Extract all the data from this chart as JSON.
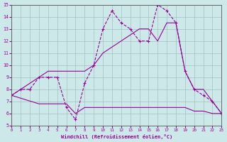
{
  "xlabel": "Windchill (Refroidissement éolien,°C)",
  "background_color": "#cce8e8",
  "line_color": "#990099",
  "xlim": [
    0,
    23
  ],
  "ylim": [
    5,
    15
  ],
  "xticks": [
    0,
    1,
    2,
    3,
    4,
    5,
    6,
    7,
    8,
    9,
    10,
    11,
    12,
    13,
    14,
    15,
    16,
    17,
    18,
    19,
    20,
    21,
    22,
    23
  ],
  "yticks": [
    5,
    6,
    7,
    8,
    9,
    10,
    11,
    12,
    13,
    14,
    15
  ],
  "line1_x": [
    0,
    1,
    2,
    3,
    4,
    5,
    6,
    7,
    8,
    9,
    10,
    11,
    12,
    13,
    14,
    15,
    16,
    17,
    18,
    19,
    20,
    21,
    22,
    23
  ],
  "line1_y": [
    7.5,
    8.0,
    8.0,
    9.0,
    9.0,
    9.0,
    6.5,
    5.5,
    8.5,
    10.0,
    13.0,
    14.5,
    13.5,
    13.0,
    12.0,
    12.0,
    15.0,
    14.5,
    13.5,
    9.5,
    8.0,
    7.5,
    7.0,
    6.0
  ],
  "line2_x": [
    0,
    3,
    4,
    5,
    6,
    7,
    8,
    9,
    10,
    11,
    12,
    13,
    14,
    15,
    16,
    17,
    18,
    19,
    20,
    21,
    22,
    23
  ],
  "line2_y": [
    7.5,
    6.8,
    6.8,
    6.8,
    6.8,
    6.0,
    6.5,
    6.5,
    6.5,
    6.5,
    6.5,
    6.5,
    6.5,
    6.5,
    6.5,
    6.5,
    6.5,
    6.5,
    6.2,
    6.2,
    6.0,
    6.0
  ],
  "line3_x": [
    0,
    1,
    2,
    3,
    4,
    5,
    6,
    7,
    8,
    9,
    10,
    11,
    12,
    13,
    14,
    15,
    16,
    17,
    18,
    19,
    20,
    21,
    22,
    23
  ],
  "line3_y": [
    7.5,
    8.0,
    8.5,
    9.0,
    9.5,
    9.5,
    9.5,
    9.5,
    9.5,
    10.0,
    11.0,
    11.5,
    12.0,
    12.5,
    13.0,
    13.0,
    12.0,
    13.5,
    13.5,
    9.5,
    8.0,
    8.0,
    7.0,
    6.0
  ]
}
